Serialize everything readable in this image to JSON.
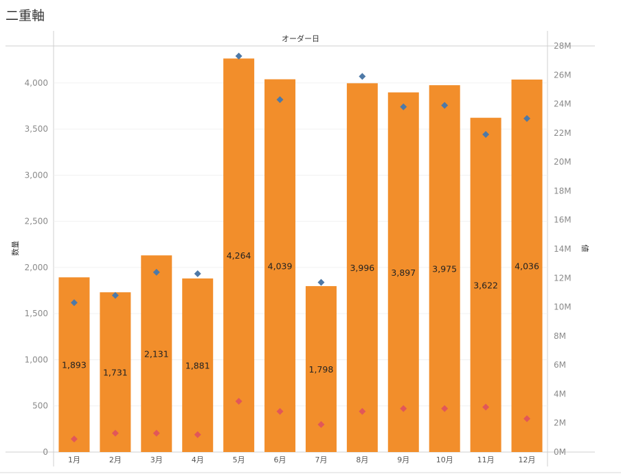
{
  "title": "二重軸",
  "chart_data": {
    "type": "bar",
    "title": "二重軸",
    "header_label": "オーダー日",
    "categories": [
      "1月",
      "2月",
      "3月",
      "4月",
      "5月",
      "6月",
      "7月",
      "8月",
      "9月",
      "10月",
      "11月",
      "12月"
    ],
    "left_axis": {
      "label": "数量",
      "range": [
        0,
        4400
      ],
      "ticks": [
        0,
        500,
        1000,
        1500,
        2000,
        2500,
        3000,
        3500,
        4000
      ],
      "tick_labels": [
        "0",
        "500",
        "1,000",
        "1,500",
        "2,000",
        "2,500",
        "3,000",
        "3,500",
        "4,000"
      ]
    },
    "right_axis": {
      "label": "値",
      "range": [
        0,
        28000000
      ],
      "ticks": [
        0,
        2000000,
        4000000,
        6000000,
        8000000,
        10000000,
        12000000,
        14000000,
        16000000,
        18000000,
        20000000,
        22000000,
        24000000,
        26000000,
        28000000
      ],
      "tick_labels": [
        "0M",
        "2M",
        "4M",
        "6M",
        "8M",
        "10M",
        "12M",
        "14M",
        "16M",
        "18M",
        "20M",
        "22M",
        "24M",
        "26M",
        "28M"
      ]
    },
    "series": [
      {
        "name": "数量",
        "type": "bar",
        "axis": "left",
        "color": "#f28e2b",
        "values": [
          1893,
          1731,
          2131,
          1881,
          4264,
          4039,
          1798,
          3996,
          3897,
          3975,
          3622,
          4036
        ],
        "labels": [
          "1,893",
          "1,731",
          "2,131",
          "1,881",
          "4,264",
          "4,039",
          "1,798",
          "3,996",
          "3,897",
          "3,975",
          "3,622",
          "4,036"
        ]
      },
      {
        "type": "scatter",
        "marker": "diamond",
        "axis": "right",
        "color": "#4e79a7",
        "values": [
          10300000,
          10800000,
          12400000,
          12300000,
          27300000,
          24300000,
          11700000,
          25900000,
          23800000,
          23900000,
          21900000,
          23000000
        ]
      },
      {
        "type": "scatter",
        "marker": "diamond",
        "axis": "right",
        "color": "#e15759",
        "values": [
          900000,
          1300000,
          1300000,
          1200000,
          3500000,
          2800000,
          1900000,
          2800000,
          3000000,
          3000000,
          3100000,
          2300000
        ]
      }
    ],
    "grid": true,
    "legend": "none"
  }
}
